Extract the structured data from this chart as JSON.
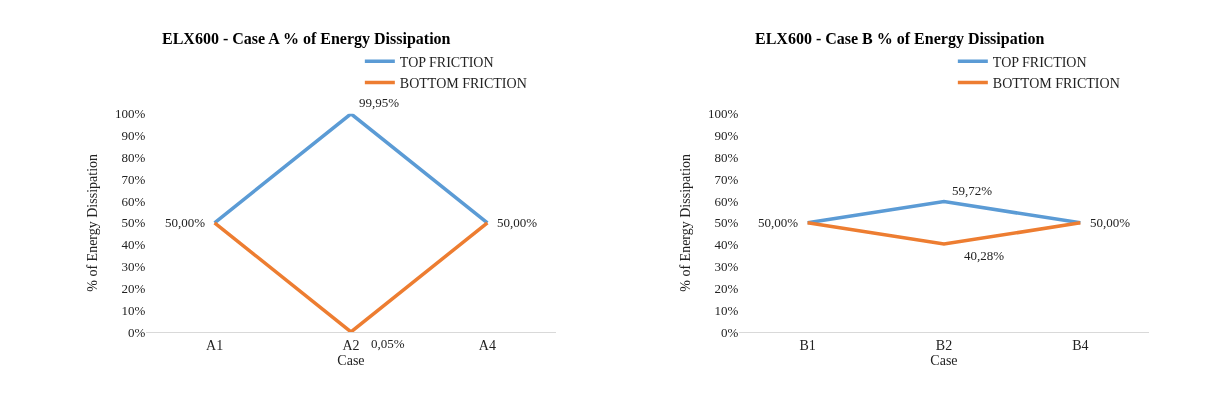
{
  "chart_data": [
    {
      "type": "line",
      "title": "ELX600 - Case A % of Energy Dissipation",
      "xlabel": "Case",
      "ylabel": "% of Energy Dissipation",
      "categories": [
        "A1",
        "A2",
        "A4"
      ],
      "series": [
        {
          "name": "TOP FRICTION",
          "color": "#5b9bd5",
          "values": [
            50.0,
            99.95,
            50.0
          ],
          "value_labels": [
            "50,00%",
            "99,95%",
            "50,00%"
          ]
        },
        {
          "name": "BOTTOM FRICTION",
          "color": "#ed7d31",
          "values": [
            50.0,
            0.05,
            50.0
          ],
          "value_labels": [
            null,
            "0,05%",
            null
          ]
        }
      ],
      "ylim": [
        0,
        100
      ],
      "yticks": [
        {
          "value": 0,
          "label": "0%"
        },
        {
          "value": 10,
          "label": "10%"
        },
        {
          "value": 20,
          "label": "20%"
        },
        {
          "value": 30,
          "label": "30%"
        },
        {
          "value": 40,
          "label": "40%"
        },
        {
          "value": 50,
          "label": "50%"
        },
        {
          "value": 60,
          "label": "60%"
        },
        {
          "value": 70,
          "label": "70%"
        },
        {
          "value": 80,
          "label": "80%"
        },
        {
          "value": 90,
          "label": "90%"
        },
        {
          "value": 100,
          "label": "100%"
        }
      ],
      "grid": false,
      "legend": "top right",
      "marker": "none",
      "line_style": "solid"
    },
    {
      "type": "line",
      "title": "ELX600 - Case B % of Energy Dissipation",
      "xlabel": "Case",
      "ylabel": "% of Energy Dissipation",
      "categories": [
        "B1",
        "B2",
        "B4"
      ],
      "series": [
        {
          "name": "TOP FRICTION",
          "color": "#5b9bd5",
          "values": [
            50.0,
            59.72,
            50.0
          ],
          "value_labels": [
            "50,00%",
            "59,72%",
            "50,00%"
          ]
        },
        {
          "name": "BOTTOM FRICTION",
          "color": "#ed7d31",
          "values": [
            50.0,
            40.28,
            50.0
          ],
          "value_labels": [
            null,
            "40,28%",
            null
          ]
        }
      ],
      "ylim": [
        0,
        100
      ],
      "yticks": [
        {
          "value": 0,
          "label": "0%"
        },
        {
          "value": 10,
          "label": "10%"
        },
        {
          "value": 20,
          "label": "20%"
        },
        {
          "value": 30,
          "label": "30%"
        },
        {
          "value": 40,
          "label": "40%"
        },
        {
          "value": 50,
          "label": "50%"
        },
        {
          "value": 60,
          "label": "60%"
        },
        {
          "value": 70,
          "label": "70%"
        },
        {
          "value": 80,
          "label": "80%"
        },
        {
          "value": 90,
          "label": "90%"
        },
        {
          "value": 100,
          "label": "100%"
        }
      ],
      "grid": false,
      "legend": "top right",
      "marker": "none",
      "line_style": "solid"
    }
  ]
}
